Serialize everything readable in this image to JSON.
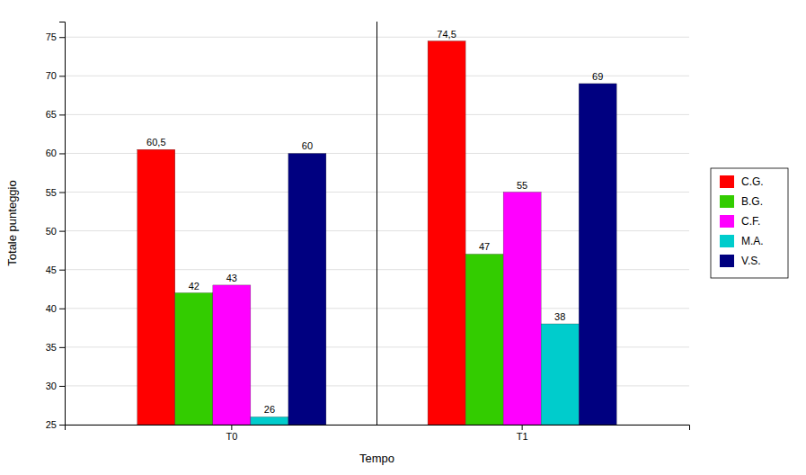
{
  "chart_data": {
    "type": "bar",
    "categories": [
      "T0",
      "T1"
    ],
    "series": [
      {
        "name": "C.G.",
        "color": "#FF0000",
        "values": [
          60.5,
          74.5
        ],
        "value_labels": [
          "60,5",
          "74,5"
        ]
      },
      {
        "name": "B.G.",
        "color": "#33CC00",
        "values": [
          42,
          47
        ]
      },
      {
        "name": "C.F.",
        "color": "#FF00FF",
        "values": [
          43,
          55
        ]
      },
      {
        "name": "M.A.",
        "color": "#00CCCC",
        "values": [
          26,
          38
        ]
      },
      {
        "name": "V.S.",
        "color": "#000080",
        "values": [
          60,
          69
        ]
      }
    ],
    "xlabel": "Tempo",
    "ylabel": "Totale punteggio",
    "ylim": [
      25,
      77
    ],
    "yticks": [
      25,
      30,
      35,
      40,
      45,
      50,
      55,
      60,
      65,
      70,
      75
    ],
    "grid": true,
    "legend": "right",
    "data_labels": true
  }
}
